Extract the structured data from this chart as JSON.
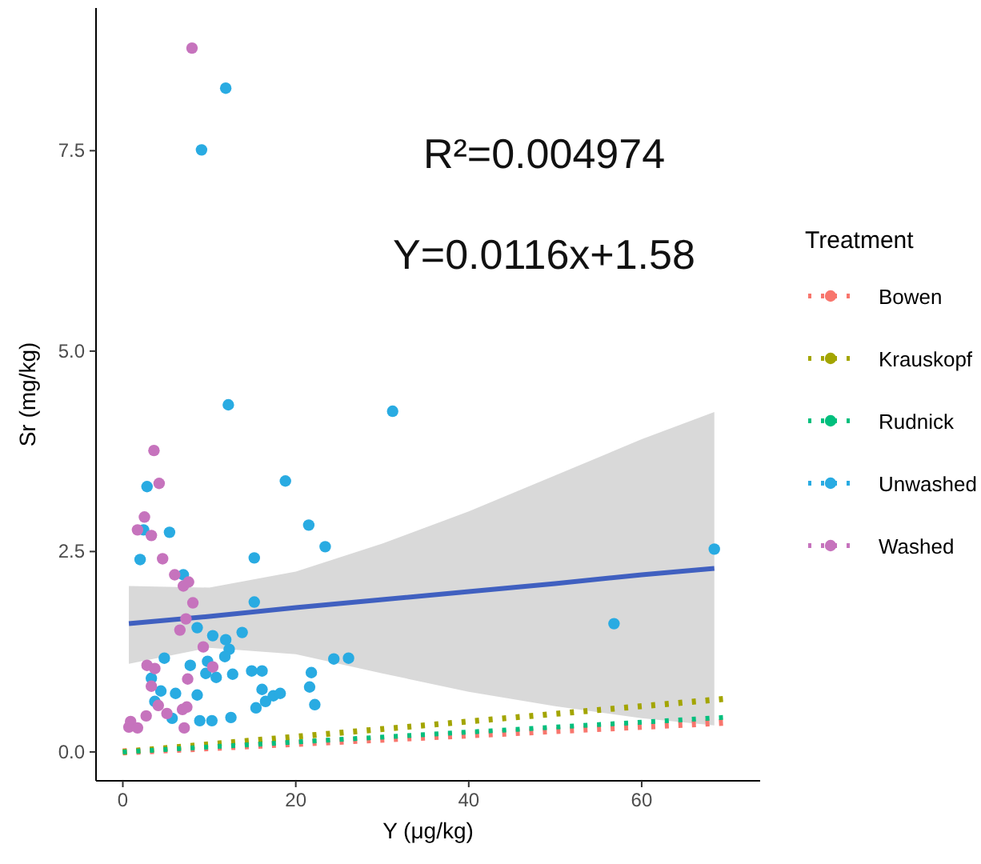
{
  "chart_data": {
    "type": "scatter",
    "xlabel": "Y (μg/kg)",
    "ylabel": "Sr (mg/kg)",
    "legend_title": "Treatment",
    "legend": "right",
    "grid": false,
    "marker": "circle",
    "annotations": [
      "R²=0.004974",
      "Y=0.0116x+1.58"
    ],
    "xlim": [
      -3.1,
      73.7
    ],
    "ylim": [
      -0.36,
      9.28
    ],
    "xticks": [
      0,
      20,
      40,
      60
    ],
    "yticks": [
      {
        "value": 0,
        "label": "0.0"
      },
      2.5,
      {
        "value": 5,
        "label": "5.0"
      },
      7.5
    ],
    "series": [
      {
        "name": "Bowen",
        "type": "line",
        "marker": "none",
        "line_style": "dotted",
        "color": "#f8766d",
        "x": [
          0,
          69.4
        ],
        "values": [
          0,
          0.37
        ]
      },
      {
        "name": "Krauskopf",
        "type": "line",
        "marker": "none",
        "line_style": "dotted",
        "color": "#a3a500",
        "x": [
          0,
          69.4
        ],
        "values": [
          0,
          0.66
        ]
      },
      {
        "name": "Rudnick",
        "type": "line",
        "marker": "none",
        "line_style": "dotted",
        "color": "#00bf7d",
        "x": [
          0,
          69.4
        ],
        "values": [
          0,
          0.43
        ]
      },
      {
        "name": "Unwashed",
        "color": "#29abe2",
        "x": [
          11.9,
          9.1,
          12.2,
          31.2,
          2.8,
          18.8,
          2.4,
          5.4,
          21.5,
          23.4,
          2.0,
          15.2,
          7.0,
          15.2,
          8.6,
          13.8,
          10.4,
          11.9,
          12.3,
          11.8,
          4.8,
          24.4,
          26.1,
          7.8,
          9.8,
          9.6,
          10.8,
          12.7,
          14.9,
          16.1,
          21.8,
          3.3,
          21.6,
          16.1,
          6.1,
          8.6,
          4.4,
          3.7,
          17.4,
          18.2,
          16.5,
          15.4,
          22.2,
          5.7,
          8.9,
          10.3,
          12.5,
          68.4,
          56.8
        ],
        "values": [
          8.28,
          7.51,
          4.33,
          4.25,
          3.31,
          3.38,
          2.77,
          2.74,
          2.83,
          2.56,
          2.4,
          2.42,
          2.21,
          1.87,
          1.55,
          1.49,
          1.45,
          1.4,
          1.28,
          1.19,
          1.17,
          1.16,
          1.17,
          1.08,
          1.13,
          0.98,
          0.93,
          0.97,
          1.01,
          1.01,
          0.99,
          0.92,
          0.81,
          0.78,
          0.73,
          0.71,
          0.76,
          0.63,
          0.7,
          0.73,
          0.63,
          0.55,
          0.59,
          0.42,
          0.39,
          0.39,
          0.43,
          2.53,
          1.6
        ]
      },
      {
        "name": "Washed",
        "color": "#c673bd",
        "x": [
          8.0,
          3.6,
          4.2,
          2.5,
          1.7,
          3.3,
          4.6,
          6.0,
          7.0,
          7.6,
          8.1,
          7.3,
          6.6,
          9.3,
          2.8,
          3.7,
          10.4,
          3.3,
          4.1,
          7.5,
          5.1,
          6.9,
          7.4,
          2.7,
          7.1,
          0.9,
          0.7,
          1.7
        ],
        "values": [
          8.78,
          3.76,
          3.35,
          2.93,
          2.77,
          2.7,
          2.41,
          2.21,
          2.07,
          2.12,
          1.86,
          1.66,
          1.52,
          1.31,
          1.08,
          1.04,
          1.06,
          0.82,
          0.58,
          0.91,
          0.48,
          0.53,
          0.56,
          0.45,
          0.3,
          0.38,
          0.31,
          0.3
        ]
      },
      {
        "type": "line",
        "marker": "none",
        "line_style": "solid",
        "color": "#4060c0",
        "x": [
          0.7,
          10,
          20,
          30,
          40,
          50,
          60,
          68.4
        ],
        "values": [
          1.6,
          1.69,
          1.8,
          1.9,
          2.0,
          2.1,
          2.21,
          2.29
        ],
        "lower": [
          1.1,
          1.3,
          1.22,
          0.98,
          0.75,
          0.57,
          0.42,
          0.33
        ],
        "upper": [
          2.07,
          2.05,
          2.25,
          2.6,
          3.0,
          3.45,
          3.9,
          4.24
        ]
      }
    ]
  }
}
